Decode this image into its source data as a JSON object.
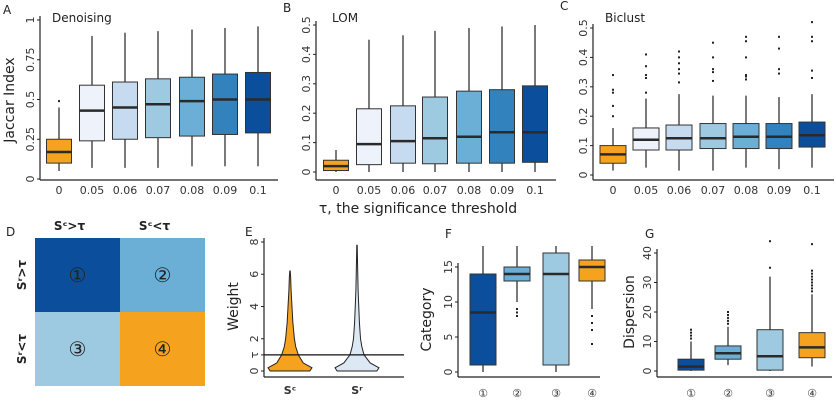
{
  "colors": {
    "orange": "#f5a31e",
    "blues": [
      "#eef2fa",
      "#c6dbef",
      "#9ecae1",
      "#6baed6",
      "#3182bd",
      "#0b4f9c"
    ],
    "q1": "#0b4f9c",
    "q2": "#6baed6",
    "q3": "#9ecae1",
    "q4": "#f5a31e",
    "violin_r": "#dde8f5"
  },
  "shared_xlabel": "τ, the significance threshold",
  "chart_data": [
    {
      "panel": "A",
      "type": "box",
      "title": "Denoising",
      "ylabel": "Jaccar Index",
      "ylim": [
        0,
        1
      ],
      "yticks": [
        "0",
        "0.25",
        "0.5",
        "0.75",
        "1"
      ],
      "ytick_values": [
        0,
        0.25,
        0.5,
        0.75,
        1
      ],
      "categories": [
        "0",
        "0.05",
        "0.06",
        "0.07",
        "0.08",
        "0.09",
        "0.1"
      ],
      "boxes": [
        {
          "min": 0.05,
          "q1": 0.1,
          "median": 0.17,
          "q3": 0.25,
          "max": 0.45,
          "outliers": [
            0.49
          ]
        },
        {
          "min": 0.07,
          "q1": 0.24,
          "median": 0.43,
          "q3": 0.59,
          "max": 0.9,
          "outliers": []
        },
        {
          "min": 0.07,
          "q1": 0.25,
          "median": 0.45,
          "q3": 0.61,
          "max": 0.92,
          "outliers": []
        },
        {
          "min": 0.07,
          "q1": 0.26,
          "median": 0.47,
          "q3": 0.63,
          "max": 0.93,
          "outliers": []
        },
        {
          "min": 0.08,
          "q1": 0.27,
          "median": 0.49,
          "q3": 0.64,
          "max": 0.94,
          "outliers": []
        },
        {
          "min": 0.08,
          "q1": 0.28,
          "median": 0.5,
          "q3": 0.66,
          "max": 0.95,
          "outliers": []
        },
        {
          "min": 0.08,
          "q1": 0.29,
          "median": 0.5,
          "q3": 0.67,
          "max": 0.96,
          "outliers": []
        }
      ]
    },
    {
      "panel": "B",
      "type": "box",
      "title": "LOM",
      "ylabel": "",
      "ylim": [
        0,
        0.5
      ],
      "yticks": [
        "0",
        "0.1",
        "0.2",
        "0.3",
        "0.4",
        "0.5"
      ],
      "ytick_values": [
        0,
        0.1,
        0.2,
        0.3,
        0.4,
        0.5
      ],
      "categories": [
        "0",
        "0.05",
        "0.06",
        "0.07",
        "0.08",
        "0.09",
        "0.1"
      ],
      "boxes": [
        {
          "min": 0,
          "q1": 0.005,
          "median": 0.02,
          "q3": 0.04,
          "max": 0.075,
          "outliers": []
        },
        {
          "min": 0,
          "q1": 0.025,
          "median": 0.095,
          "q3": 0.215,
          "max": 0.45,
          "outliers": []
        },
        {
          "min": 0,
          "q1": 0.03,
          "median": 0.105,
          "q3": 0.225,
          "max": 0.465,
          "outliers": []
        },
        {
          "min": 0,
          "q1": 0.028,
          "median": 0.115,
          "q3": 0.255,
          "max": 0.48,
          "outliers": []
        },
        {
          "min": 0,
          "q1": 0.03,
          "median": 0.12,
          "q3": 0.275,
          "max": 0.49,
          "outliers": []
        },
        {
          "min": 0,
          "q1": 0.03,
          "median": 0.135,
          "q3": 0.28,
          "max": 0.495,
          "outliers": []
        },
        {
          "min": 0,
          "q1": 0.033,
          "median": 0.135,
          "q3": 0.293,
          "max": 0.5,
          "outliers": []
        }
      ]
    },
    {
      "panel": "C",
      "type": "box",
      "title": "Biclust",
      "ylabel": "",
      "ylim": [
        0,
        0.5
      ],
      "yticks": [
        "0",
        "0.1",
        "0.2",
        "0.3",
        "0.4",
        "0.5"
      ],
      "ytick_values": [
        0,
        0.1,
        0.2,
        0.3,
        0.4,
        0.5
      ],
      "categories": [
        "0",
        "0.05",
        "0.06",
        "0.07",
        "0.08",
        "0.09",
        "0.1"
      ],
      "boxes": [
        {
          "min": 0.015,
          "q1": 0.04,
          "median": 0.07,
          "q3": 0.1,
          "max": 0.16,
          "outliers": [
            0.2,
            0.235,
            0.28,
            0.29,
            0.34
          ]
        },
        {
          "min": 0.025,
          "q1": 0.085,
          "median": 0.12,
          "q3": 0.16,
          "max": 0.26,
          "outliers": [
            0.28,
            0.33,
            0.34,
            0.37,
            0.41
          ]
        },
        {
          "min": 0.015,
          "q1": 0.085,
          "median": 0.125,
          "q3": 0.17,
          "max": 0.275,
          "outliers": [
            0.315,
            0.345,
            0.36,
            0.38,
            0.4,
            0.42
          ]
        },
        {
          "min": 0.015,
          "q1": 0.09,
          "median": 0.125,
          "q3": 0.175,
          "max": 0.27,
          "outliers": [
            0.32,
            0.35,
            0.36,
            0.4,
            0.45
          ]
        },
        {
          "min": 0.025,
          "q1": 0.09,
          "median": 0.13,
          "q3": 0.175,
          "max": 0.27,
          "outliers": [
            0.325,
            0.335,
            0.34,
            0.4,
            0.455,
            0.47
          ]
        },
        {
          "min": 0.02,
          "q1": 0.09,
          "median": 0.13,
          "q3": 0.175,
          "max": 0.265,
          "outliers": [
            0.345,
            0.36,
            0.43,
            0.47
          ]
        },
        {
          "min": 0.025,
          "q1": 0.095,
          "median": 0.135,
          "q3": 0.18,
          "max": 0.275,
          "outliers": [
            0.33,
            0.355,
            0.455,
            0.47,
            0.52
          ]
        }
      ]
    },
    {
      "panel": "D",
      "type": "heatmap",
      "columns": [
        "Sᶜ>τ",
        "Sᶜ<τ"
      ],
      "rows": [
        "Sʳ>τ",
        "Sʳ<τ"
      ],
      "cells": [
        [
          "①",
          "②"
        ],
        [
          "③",
          "④"
        ]
      ]
    },
    {
      "panel": "E",
      "type": "violin",
      "ylabel": "Weight",
      "ylim": [
        0,
        8
      ],
      "yticks": [
        "0",
        "τ",
        "2",
        "4",
        "6",
        "8"
      ],
      "ytick_values": [
        0,
        1,
        2,
        4,
        6,
        8
      ],
      "threshold": 1,
      "categories": [
        "Sᶜ",
        "Sʳ"
      ],
      "violins": [
        {
          "weights": [
            0,
            0.2,
            0.5,
            1,
            1.5,
            2,
            3,
            4,
            5,
            5.8,
            6.2
          ],
          "density": [
            0.9,
            1.0,
            0.6,
            0.38,
            0.26,
            0.2,
            0.13,
            0.09,
            0.05,
            0.03,
            0.01
          ]
        },
        {
          "weights": [
            0,
            0.2,
            0.5,
            1,
            1.5,
            2,
            3,
            4,
            5,
            6,
            7,
            7.8
          ],
          "density": [
            0.9,
            1.0,
            0.6,
            0.32,
            0.22,
            0.16,
            0.11,
            0.08,
            0.05,
            0.035,
            0.02,
            0.01
          ]
        }
      ]
    },
    {
      "panel": "F",
      "type": "box",
      "ylabel": "Category",
      "ylim": [
        0,
        18
      ],
      "yticks": [
        "0",
        "5",
        "10",
        "15"
      ],
      "ytick_values": [
        0,
        5,
        10,
        15
      ],
      "categories": [
        "①",
        "②",
        "③",
        "④"
      ],
      "boxes": [
        {
          "min": 0,
          "q1": 1,
          "median": 8.5,
          "q3": 14,
          "max": 18,
          "outliers": []
        },
        {
          "min": 10,
          "q1": 13,
          "median": 14,
          "q3": 15,
          "max": 18,
          "outliers": [
            8,
            8.5,
            9
          ]
        },
        {
          "min": 0,
          "q1": 1,
          "median": 14,
          "q3": 17,
          "max": 18,
          "outliers": []
        },
        {
          "min": 9,
          "q1": 13,
          "median": 15,
          "q3": 16,
          "max": 18,
          "outliers": [
            4,
            6,
            7,
            8
          ]
        }
      ]
    },
    {
      "panel": "G",
      "type": "box",
      "ylabel": "Dispersion",
      "ylim": [
        0,
        45
      ],
      "yticks": [
        "0",
        "10",
        "20",
        "30",
        "40"
      ],
      "ytick_values": [
        0,
        10,
        20,
        30,
        40
      ],
      "categories": [
        "①",
        "②",
        "③",
        "④"
      ],
      "boxes": [
        {
          "min": 0,
          "q1": 0.3,
          "median": 1.5,
          "q3": 4,
          "max": 10,
          "outliers": [
            11,
            12,
            13,
            14
          ]
        },
        {
          "min": 2,
          "q1": 4,
          "median": 6,
          "q3": 8.5,
          "max": 15,
          "outliers": [
            16,
            17,
            18,
            19,
            20
          ]
        },
        {
          "min": 0,
          "q1": 0.3,
          "median": 5,
          "q3": 14,
          "max": 32,
          "outliers": [
            35,
            44
          ]
        },
        {
          "min": 1.5,
          "q1": 4.5,
          "median": 8,
          "q3": 13,
          "max": 26,
          "outliers": [
            27,
            28,
            29,
            30,
            31,
            32,
            33,
            34,
            43
          ]
        }
      ]
    }
  ]
}
